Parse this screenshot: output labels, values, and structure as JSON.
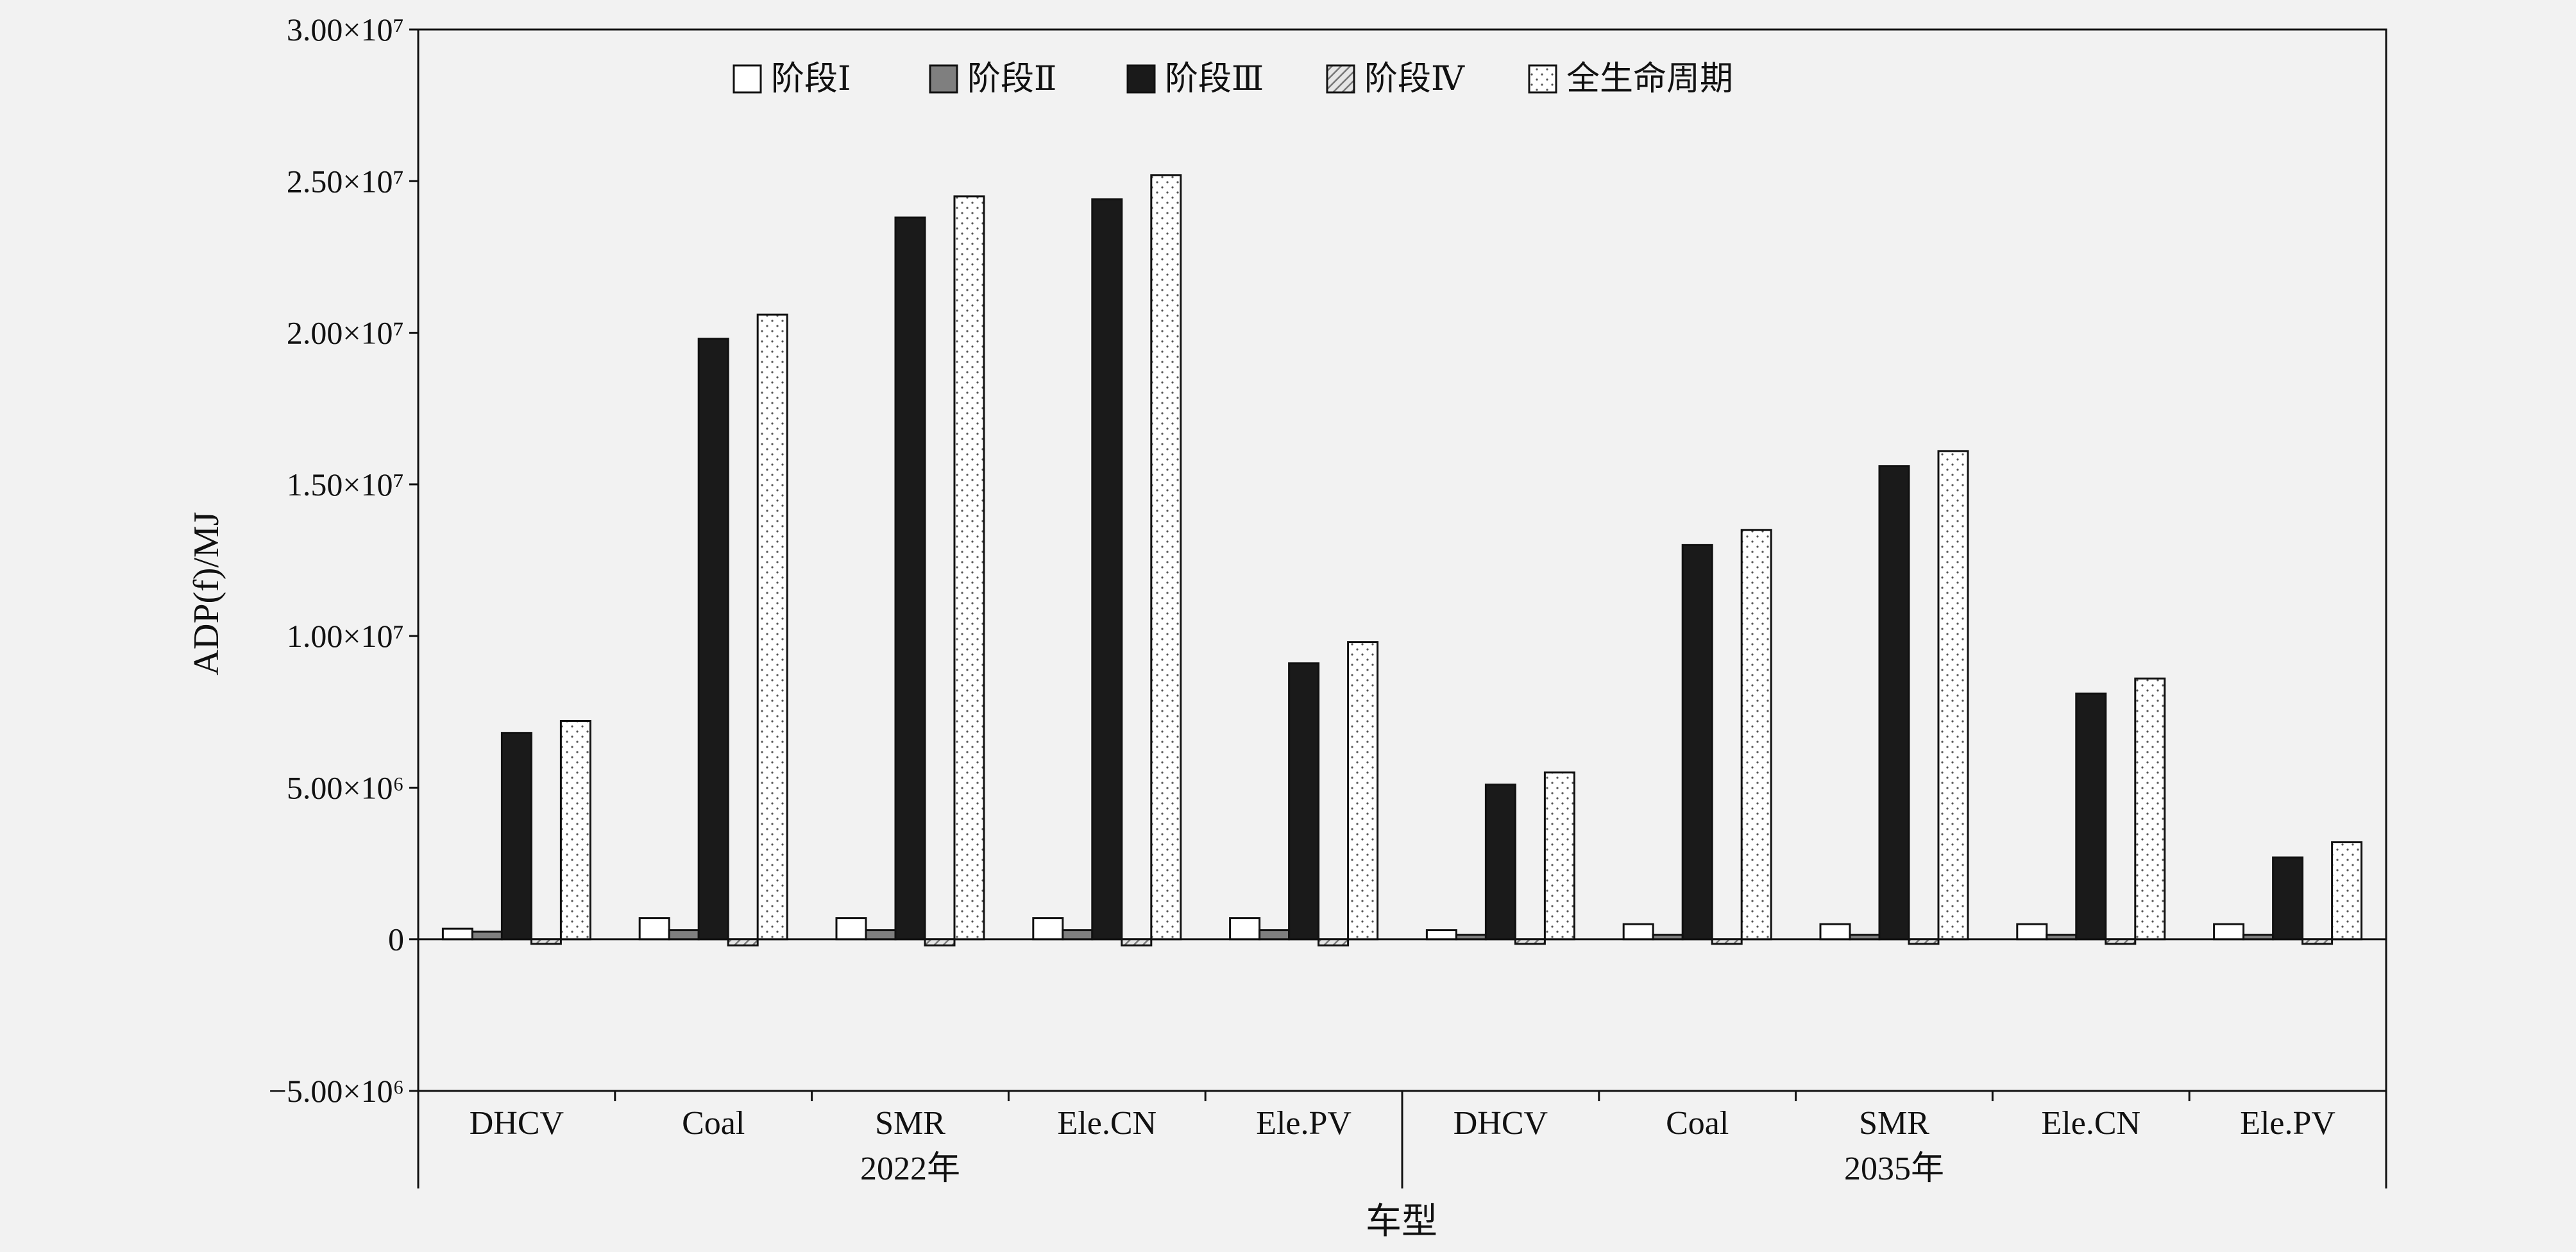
{
  "chart_data": {
    "type": "bar",
    "title": "",
    "ylabel": "ADP(f)/MJ",
    "xlabel": "车型",
    "ylim": [
      -5000000,
      30000000
    ],
    "yticks": [
      {
        "value": -5000000,
        "label": "−5.00×10⁶"
      },
      {
        "value": 0,
        "label": "0"
      },
      {
        "value": 5000000,
        "label": "5.00×10⁶"
      },
      {
        "value": 10000000,
        "label": "1.00×10⁷"
      },
      {
        "value": 15000000,
        "label": "1.50×10⁷"
      },
      {
        "value": 20000000,
        "label": "2.00×10⁷"
      },
      {
        "value": 25000000,
        "label": "2.50×10⁷"
      },
      {
        "value": 30000000,
        "label": "3.00×10⁷"
      }
    ],
    "legend_position": "top-center",
    "groups": [
      {
        "label": "2022年",
        "categories": [
          "DHCV",
          "Coal",
          "SMR",
          "Ele.CN",
          "Ele.PV"
        ]
      },
      {
        "label": "2035年",
        "categories": [
          "DHCV",
          "Coal",
          "SMR",
          "Ele.CN",
          "Ele.PV"
        ]
      }
    ],
    "categories": [
      "DHCV",
      "Coal",
      "SMR",
      "Ele.CN",
      "Ele.PV",
      "DHCV",
      "Coal",
      "SMR",
      "Ele.CN",
      "Ele.PV"
    ],
    "series": [
      {
        "name": "阶段Ⅰ",
        "fill": "#ffffff",
        "pattern": "none",
        "values": [
          350000,
          700000,
          700000,
          700000,
          700000,
          300000,
          500000,
          500000,
          500000,
          500000
        ]
      },
      {
        "name": "阶段Ⅱ",
        "fill": "#7f7f7f",
        "pattern": "none",
        "values": [
          250000,
          300000,
          300000,
          300000,
          300000,
          150000,
          150000,
          150000,
          150000,
          150000
        ]
      },
      {
        "name": "阶段Ⅲ",
        "fill": "#1a1a1a",
        "pattern": "none",
        "values": [
          6800000,
          19800000,
          23800000,
          24400000,
          9100000,
          5100000,
          13000000,
          15600000,
          8100000,
          2700000
        ]
      },
      {
        "name": "阶段Ⅳ",
        "fill": "#cfcfcf",
        "pattern": "diagonal",
        "values": [
          -150000,
          -200000,
          -200000,
          -200000,
          -200000,
          -150000,
          -150000,
          -150000,
          -150000,
          -150000
        ]
      },
      {
        "name": "全生命周期",
        "fill": "#ffffff",
        "pattern": "dots",
        "values": [
          7200000,
          20600000,
          24500000,
          25200000,
          9800000,
          5500000,
          13500000,
          16100000,
          8600000,
          3200000
        ]
      }
    ]
  }
}
